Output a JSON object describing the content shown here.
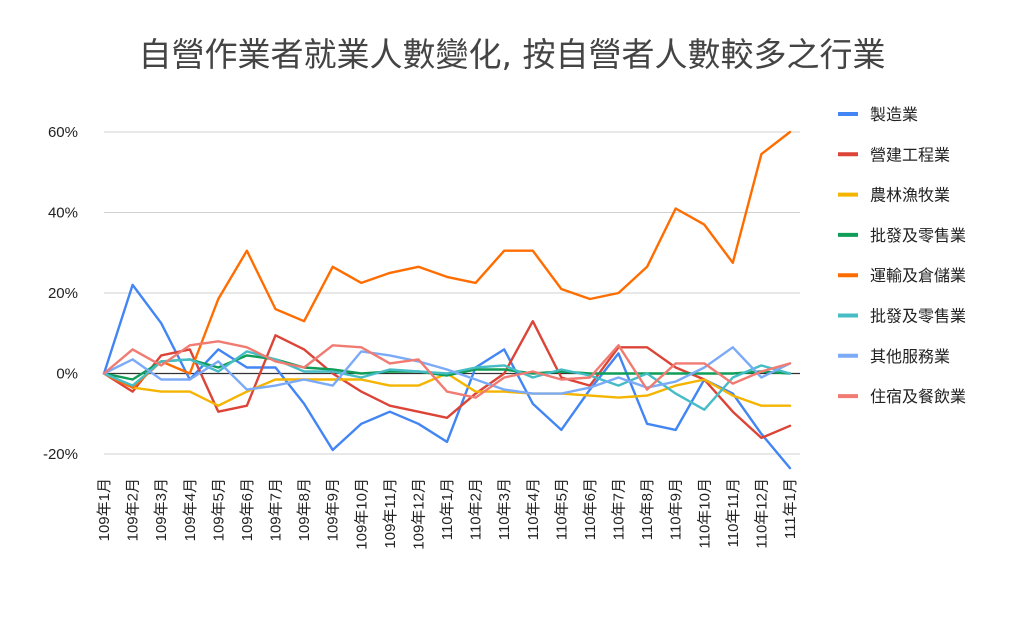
{
  "chart_data": {
    "type": "line",
    "title": "自營作業者就業人數變化, 按自營者人數較多之行業",
    "xlabel": "",
    "ylabel": "",
    "ylim": [
      -25,
      65
    ],
    "yticks": [
      -20,
      0,
      20,
      40,
      60
    ],
    "ytick_labels": [
      "-20%",
      "0%",
      "20%",
      "40%",
      "60%"
    ],
    "grid": true,
    "legend_position": "right",
    "categories": [
      "109年1月",
      "109年2月",
      "109年3月",
      "109年4月",
      "109年5月",
      "109年6月",
      "109年7月",
      "109年8月",
      "109年9月",
      "109年10月",
      "109年11月",
      "109年12月",
      "110年1月",
      "110年2月",
      "110年3月",
      "110年4月",
      "110年5月",
      "110年6月",
      "110年7月",
      "110年8月",
      "110年9月",
      "110年10月",
      "110年11月",
      "110年12月",
      "111年1月"
    ],
    "series": [
      {
        "name": "製造業",
        "color": "#4285f4",
        "values": [
          0,
          22,
          12.5,
          -1.5,
          6,
          1.5,
          1.5,
          -7.5,
          -19,
          -12.5,
          -9.5,
          -12.5,
          -17,
          1.5,
          6,
          -7.5,
          -14,
          -4,
          5,
          -12.5,
          -14,
          -1.5,
          -5,
          -15,
          -23.5
        ]
      },
      {
        "name": "營建工程業",
        "color": "#db4437",
        "values": [
          0,
          -4.5,
          4.5,
          6,
          -9.5,
          -8,
          9.5,
          6,
          0,
          -4.5,
          -8,
          -9.5,
          -11,
          -5,
          0,
          13,
          -1,
          -3,
          6.5,
          6.5,
          1.5,
          -1.5,
          -9.5,
          -16,
          -13
        ]
      },
      {
        "name": "農林漁牧業",
        "color": "#f4b400",
        "values": [
          0,
          -3.5,
          -4.5,
          -4.5,
          -8,
          -4.5,
          -1.5,
          -1.5,
          -1.5,
          -1.5,
          -3,
          -3,
          0,
          -4.5,
          -4.5,
          -5,
          -5,
          -5.5,
          -6,
          -5.5,
          -3,
          -1.5,
          -5.5,
          -8,
          -8
        ]
      },
      {
        "name": "批發及零售業",
        "color": "#0f9d58",
        "values": [
          0,
          -1.5,
          3,
          3.5,
          1.5,
          4.5,
          3.5,
          1.5,
          1,
          0,
          0.5,
          0.5,
          -0.5,
          1,
          1,
          0,
          0.5,
          0,
          0,
          0,
          0,
          0,
          0,
          0.5,
          0
        ]
      },
      {
        "name": "運輸及倉儲業",
        "color": "#ff6d01",
        "values": [
          0,
          -3.5,
          3,
          0,
          18.5,
          30.5,
          16,
          13,
          26.5,
          22.5,
          25,
          26.5,
          24,
          22.5,
          30.5,
          30.5,
          21,
          18.5,
          20,
          26.5,
          41,
          37,
          27.5,
          54.5,
          60
        ]
      },
      {
        "name": "批發及零售業",
        "color": "#46bdc6",
        "values": [
          0,
          -3,
          3,
          3.5,
          0.5,
          5.5,
          3.5,
          0.5,
          0.5,
          -1,
          1,
          0.5,
          0,
          1.5,
          2,
          -1,
          1,
          -0.5,
          -3,
          0,
          -5,
          -9,
          -1,
          2,
          0
        ]
      },
      {
        "name": "其他服務業",
        "color": "#7baaf7",
        "values": [
          0,
          3.5,
          -1.5,
          -1.5,
          3,
          -4,
          -3,
          -1.5,
          -3,
          5.5,
          4.5,
          3,
          1,
          -1.5,
          -4,
          -5,
          -5,
          -3.5,
          -1,
          -3.5,
          -2,
          1.5,
          6.5,
          -1,
          2.5
        ]
      },
      {
        "name": "住宿及餐飲業",
        "color": "#f07b72",
        "values": [
          0,
          6,
          2,
          7,
          8,
          6.5,
          3,
          1.5,
          7,
          6.5,
          2.5,
          3.5,
          -4.5,
          -6,
          -1,
          0.5,
          -1.5,
          -1,
          7,
          -4,
          2.5,
          2.5,
          -2.5,
          0.5,
          2.5
        ]
      }
    ]
  }
}
